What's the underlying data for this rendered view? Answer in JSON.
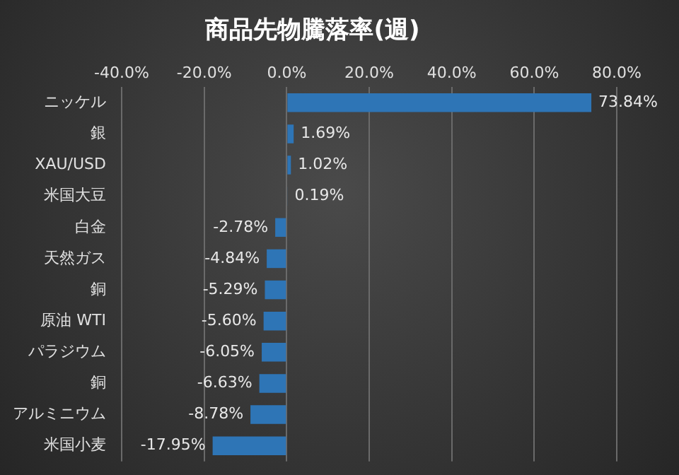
{
  "chart_data": {
    "type": "bar",
    "orientation": "horizontal",
    "title": "商品先物騰落率(週)",
    "categories": [
      "ニッケル",
      "銀",
      "XAU/USD",
      "米国大豆",
      "白金",
      "天然ガス",
      "銅",
      "原油 WTI",
      "パラジウム",
      "銅",
      "アルミニウム",
      "米国小麦"
    ],
    "values": [
      73.84,
      1.69,
      1.02,
      0.19,
      -2.78,
      -4.84,
      -5.29,
      -5.6,
      -6.05,
      -6.63,
      -8.78,
      -17.95
    ],
    "value_labels": [
      "73.84%",
      "1.69%",
      "1.02%",
      "0.19%",
      "-2.78%",
      "-4.84%",
      "-5.29%",
      "-5.60%",
      "-6.05%",
      "-6.63%",
      "-8.78%",
      "-17.95%"
    ],
    "color": "#2e75b6",
    "xlim": [
      -40,
      80
    ],
    "xticks": [
      {
        "value": -40,
        "label": "-40.0%"
      },
      {
        "value": -20,
        "label": "-20.0%"
      },
      {
        "value": 0,
        "label": "0.0%"
      },
      {
        "value": 20,
        "label": "20.0%"
      },
      {
        "value": 40,
        "label": "40.0%"
      },
      {
        "value": 60,
        "label": "60.0%"
      },
      {
        "value": 80,
        "label": "80.0%"
      }
    ],
    "grid": "x",
    "legend": false
  }
}
